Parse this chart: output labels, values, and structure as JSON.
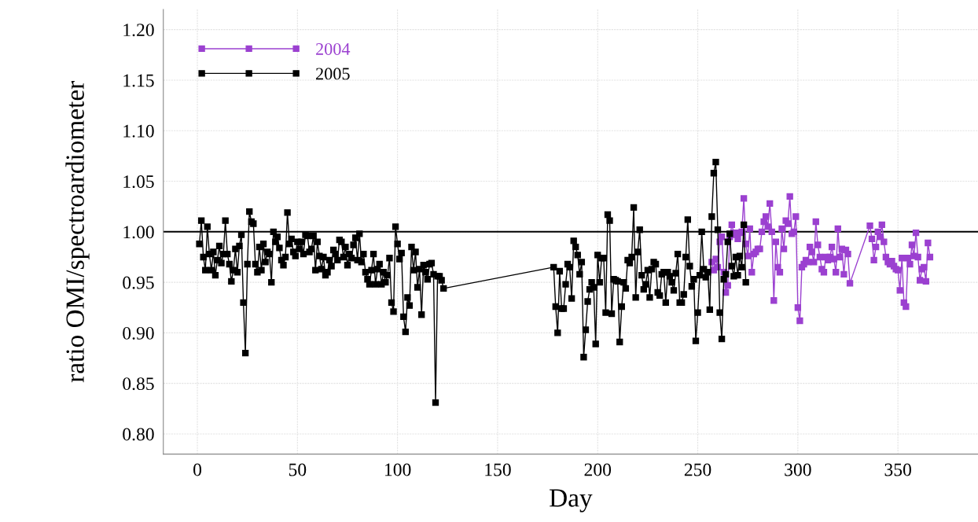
{
  "chart_data": {
    "type": "line",
    "xlabel": "Day",
    "ylabel": "ratio OMI/spectroardiometer",
    "xlim": [
      -17,
      390
    ],
    "xticks": [
      0,
      50,
      100,
      150,
      200,
      250,
      300,
      350
    ],
    "ylim": [
      0.78,
      1.22
    ],
    "yticks": [
      {
        "value": 0.8,
        "label": "0.80"
      },
      {
        "value": 0.85,
        "label": "0.85"
      },
      {
        "value": 0.9,
        "label": "0.90"
      },
      {
        "value": 0.95,
        "label": "0.95"
      },
      {
        "value": 1.0,
        "label": "1.00"
      },
      {
        "value": 1.05,
        "label": "1.05"
      },
      {
        "value": 1.1,
        "label": "1.10"
      },
      {
        "value": 1.15,
        "label": "1.15"
      },
      {
        "value": 1.2,
        "label": "1.20"
      }
    ],
    "grid": true,
    "legend": "top left",
    "marker": "square",
    "line_style": "solid",
    "ref_lines": [
      {
        "axis": "y",
        "value": 1.0,
        "color": "#000000"
      }
    ],
    "series": [
      {
        "name": "2004",
        "color": "#9b40d0",
        "x": [
          257,
          258,
          259,
          260,
          261,
          262,
          263,
          264,
          265,
          266,
          267,
          268,
          269,
          270,
          271,
          272,
          273,
          274,
          275,
          276,
          277,
          278,
          279,
          280,
          281,
          282,
          283,
          284,
          285,
          286,
          287,
          288,
          289,
          290,
          291,
          292,
          293,
          294,
          295,
          296,
          297,
          298,
          299,
          300,
          301,
          302,
          303,
          304,
          305,
          306,
          307,
          308,
          309,
          310,
          311,
          312,
          313,
          314,
          315,
          316,
          317,
          318,
          319,
          320,
          321,
          322,
          323,
          324,
          325,
          326,
          336,
          337,
          338,
          339,
          340,
          341,
          342,
          343,
          344,
          345,
          346,
          347,
          348,
          349,
          350,
          351,
          352,
          353,
          354,
          355,
          356,
          357,
          358,
          359,
          360,
          361,
          362,
          363,
          364,
          365,
          366
        ],
        "values": [
          0.97,
          0.962,
          0.973,
          0.965,
          0.99,
          0.995,
          0.96,
          0.94,
          0.947,
          0.995,
          1.007,
          0.999,
          0.997,
          0.993,
          0.999,
          1.0,
          1.033,
          0.988,
          0.976,
          1.003,
          0.96,
          0.978,
          0.98,
          0.983,
          0.983,
          1.0,
          1.01,
          1.015,
          1.005,
          1.028,
          1.0,
          0.932,
          0.99,
          0.965,
          0.96,
          1.003,
          0.983,
          1.011,
          1.008,
          1.035,
          0.998,
          1.0,
          1.015,
          0.925,
          0.912,
          0.965,
          0.968,
          0.972,
          0.97,
          0.985,
          0.98,
          0.97,
          1.01,
          0.987,
          0.975,
          0.963,
          0.96,
          0.975,
          0.972,
          0.975,
          0.985,
          0.973,
          0.96,
          1.003,
          0.975,
          0.983,
          0.958,
          0.982,
          0.978,
          0.949,
          1.006,
          0.993,
          0.972,
          0.985,
          1.0,
          0.995,
          1.007,
          0.99,
          0.975,
          0.97,
          0.968,
          0.971,
          0.966,
          0.963,
          0.962,
          0.942,
          0.974,
          0.93,
          0.926,
          0.974,
          0.968,
          0.987,
          0.976,
          0.999,
          0.975,
          0.952,
          0.963,
          0.965,
          0.951,
          0.989,
          0.975
        ]
      },
      {
        "name": "2005",
        "color": "#000000",
        "x": [
          1,
          2,
          3,
          4,
          5,
          6,
          7,
          8,
          9,
          10,
          11,
          12,
          13,
          14,
          15,
          16,
          17,
          18,
          19,
          20,
          21,
          22,
          23,
          24,
          25,
          26,
          27,
          28,
          29,
          30,
          31,
          32,
          33,
          34,
          35,
          36,
          37,
          38,
          39,
          40,
          41,
          42,
          43,
          44,
          45,
          46,
          47,
          48,
          49,
          50,
          51,
          52,
          53,
          54,
          55,
          56,
          57,
          58,
          59,
          60,
          61,
          62,
          63,
          64,
          65,
          66,
          67,
          68,
          69,
          70,
          71,
          72,
          73,
          74,
          75,
          76,
          77,
          78,
          79,
          80,
          81,
          82,
          83,
          84,
          85,
          86,
          87,
          88,
          89,
          90,
          91,
          92,
          93,
          94,
          95,
          96,
          97,
          98,
          99,
          100,
          101,
          102,
          103,
          104,
          105,
          106,
          107,
          108,
          109,
          110,
          111,
          112,
          113,
          114,
          115,
          116,
          117,
          118,
          119,
          120,
          121,
          122,
          123,
          178,
          179,
          180,
          181,
          182,
          183,
          184,
          185,
          186,
          187,
          188,
          189,
          190,
          191,
          192,
          193,
          194,
          195,
          196,
          197,
          198,
          199,
          200,
          201,
          202,
          203,
          204,
          205,
          206,
          207,
          208,
          209,
          210,
          211,
          212,
          213,
          214,
          215,
          216,
          217,
          218,
          219,
          220,
          221,
          222,
          223,
          224,
          225,
          226,
          227,
          228,
          229,
          230,
          231,
          232,
          233,
          234,
          235,
          236,
          237,
          238,
          239,
          240,
          241,
          242,
          243,
          244,
          245,
          246,
          247,
          248,
          249,
          250,
          251,
          252,
          253,
          254,
          255,
          256,
          257,
          258,
          259,
          260,
          261,
          262,
          263,
          264,
          265,
          266,
          267,
          268,
          269,
          270,
          271,
          272,
          273,
          274
        ],
        "values": [
          0.988,
          1.011,
          0.975,
          0.962,
          1.005,
          0.978,
          0.962,
          0.98,
          0.957,
          0.972,
          0.986,
          0.969,
          0.978,
          1.011,
          0.978,
          0.968,
          0.951,
          0.962,
          0.983,
          0.96,
          0.986,
          0.997,
          0.93,
          0.88,
          0.968,
          1.02,
          1.01,
          1.008,
          0.968,
          0.96,
          0.985,
          0.962,
          0.988,
          0.97,
          0.98,
          0.978,
          0.95,
          1.0,
          0.99,
          0.995,
          0.984,
          0.972,
          0.967,
          0.975,
          1.019,
          0.988,
          0.993,
          0.98,
          0.976,
          0.99,
          0.983,
          0.99,
          0.978,
          0.997,
          0.996,
          0.98,
          0.983,
          0.996,
          0.962,
          0.99,
          0.976,
          0.963,
          0.975,
          0.957,
          0.96,
          0.972,
          0.966,
          0.982,
          0.978,
          0.972,
          0.992,
          0.99,
          0.975,
          0.985,
          0.967,
          0.978,
          0.974,
          0.987,
          0.994,
          0.972,
          0.998,
          0.97,
          0.978,
          0.96,
          0.953,
          0.948,
          0.962,
          0.978,
          0.948,
          0.963,
          0.968,
          0.948,
          0.96,
          0.95,
          0.957,
          0.974,
          0.93,
          0.921,
          1.005,
          0.988,
          0.973,
          0.979,
          0.916,
          0.901,
          0.935,
          0.927,
          0.985,
          0.962,
          0.98,
          0.945,
          0.963,
          0.918,
          0.967,
          0.96,
          0.953,
          0.968,
          0.969,
          0.958,
          0.831,
          0.956,
          0.956,
          0.952,
          0.944,
          0.965,
          0.926,
          0.9,
          0.961,
          0.924,
          0.924,
          0.948,
          0.968,
          0.965,
          0.934,
          0.991,
          0.985,
          0.977,
          0.958,
          0.97,
          0.876,
          0.903,
          0.931,
          0.943,
          0.95,
          0.945,
          0.889,
          0.977,
          0.95,
          0.974,
          0.974,
          0.92,
          1.017,
          1.011,
          0.919,
          0.953,
          0.952,
          0.951,
          0.891,
          0.926,
          0.95,
          0.944,
          0.972,
          0.969,
          0.975,
          1.024,
          0.935,
          0.98,
          1.002,
          0.957,
          0.943,
          0.948,
          0.962,
          0.935,
          0.963,
          0.97,
          0.968,
          0.94,
          0.937,
          0.958,
          0.96,
          0.93,
          0.96,
          0.956,
          0.95,
          0.942,
          0.959,
          0.978,
          0.93,
          0.93,
          0.938,
          0.975,
          1.012,
          0.966,
          0.946,
          0.953,
          0.892,
          0.92,
          0.957,
          1.0,
          0.963,
          0.955,
          0.96,
          0.923,
          1.015,
          1.058,
          1.069,
          1.002,
          0.92,
          0.894,
          0.953,
          0.958,
          0.99,
          0.998,
          0.966,
          0.956,
          0.975,
          0.957,
          0.976,
          0.965,
          1.007,
          0.95
        ]
      }
    ]
  }
}
